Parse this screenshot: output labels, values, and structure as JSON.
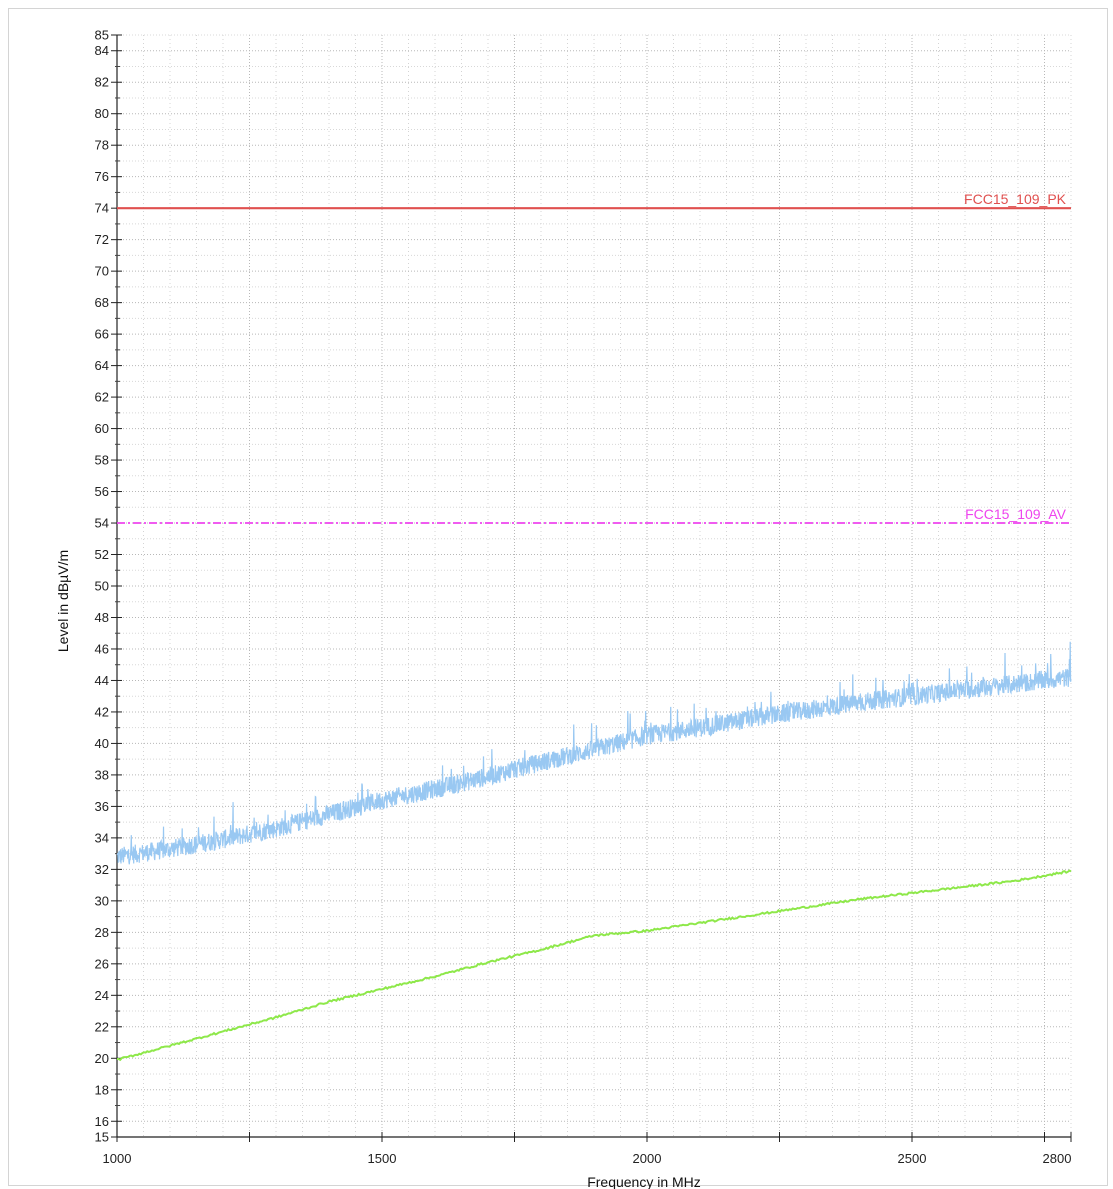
{
  "chart_data": {
    "type": "line",
    "title": "",
    "xlabel": "Frequency in MHz",
    "ylabel": "Level in dBµV/m",
    "xlim": [
      1000,
      2800
    ],
    "ylim": [
      15,
      85
    ],
    "x_tick_labels": [
      "1000",
      "1500",
      "2000",
      "2500",
      "2800"
    ],
    "x_major_ticks": [
      1000,
      1250,
      1500,
      1750,
      2000,
      2250,
      2500,
      2750
    ],
    "y_tick_labels": [
      "15",
      "16",
      "18",
      "20",
      "22",
      "24",
      "26",
      "28",
      "30",
      "32",
      "34",
      "36",
      "38",
      "40",
      "42",
      "44",
      "46",
      "48",
      "50",
      "52",
      "54",
      "56",
      "58",
      "60",
      "62",
      "64",
      "66",
      "68",
      "70",
      "72",
      "74",
      "76",
      "78",
      "80",
      "82",
      "84",
      "85"
    ],
    "grid": true,
    "limit_lines": [
      {
        "name": "FCC15_109_PK",
        "value": 74,
        "color": "#e0504f",
        "style": "solid"
      },
      {
        "name": "FCC15_109_AV",
        "value": 54,
        "color": "#ee44ee",
        "style": "dash-dot"
      }
    ],
    "series": [
      {
        "color": "#99c8f2",
        "style": "noisy",
        "x": [
          1000,
          1100,
          1200,
          1300,
          1400,
          1500,
          1600,
          1700,
          1800,
          1900,
          2000,
          2100,
          2200,
          2300,
          2400,
          2500,
          2600,
          2700,
          2800
        ],
        "y": [
          32.8,
          33.3,
          33.9,
          34.6,
          35.5,
          36.4,
          37.1,
          37.9,
          38.8,
          39.6,
          40.5,
          41.0,
          41.6,
          42.1,
          42.6,
          43.0,
          43.4,
          43.8,
          44.2
        ]
      },
      {
        "color": "#8ee84a",
        "style": "smooth",
        "x": [
          1000,
          1100,
          1200,
          1300,
          1400,
          1500,
          1600,
          1700,
          1800,
          1900,
          2000,
          2100,
          2200,
          2300,
          2400,
          2500,
          2600,
          2700,
          2800
        ],
        "y": [
          19.9,
          20.8,
          21.7,
          22.6,
          23.6,
          24.4,
          25.2,
          26.1,
          26.9,
          27.8,
          28.1,
          28.6,
          29.1,
          29.6,
          30.1,
          30.5,
          30.9,
          31.3,
          31.9
        ]
      }
    ]
  }
}
